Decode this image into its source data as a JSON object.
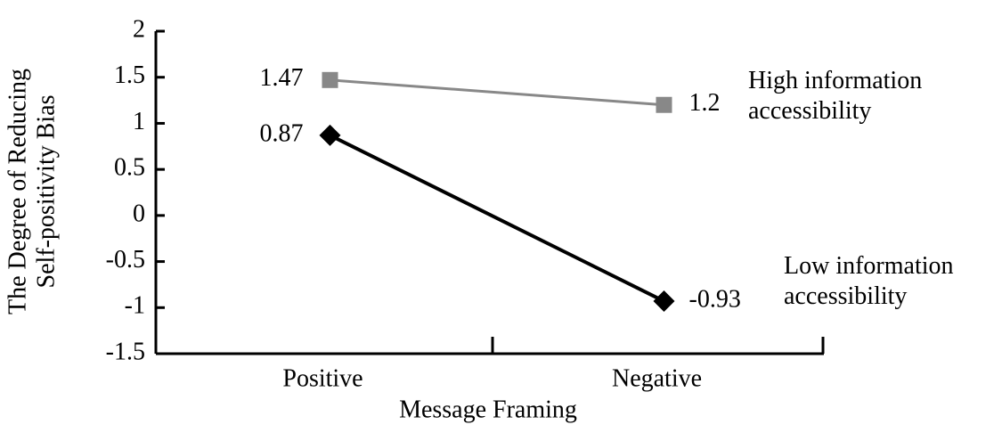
{
  "chart_data": {
    "type": "line",
    "xlabel": "Message Framing",
    "ylabel": [
      "The Degree of Reducing",
      "Self-positivity Bias"
    ],
    "categories": [
      "Positive",
      "Negative"
    ],
    "series": [
      {
        "name": "High information accessibility",
        "color": "#888888",
        "marker": "square",
        "values": [
          1.47,
          1.2
        ]
      },
      {
        "name": "Low information accessibility",
        "color": "#000000",
        "marker": "diamond",
        "values": [
          0.87,
          -0.93
        ]
      }
    ],
    "ylim": [
      -1.5,
      2
    ],
    "yticks": [
      2,
      1.5,
      1,
      0.5,
      0,
      -0.5,
      -1,
      -1.5
    ],
    "grid": false
  }
}
